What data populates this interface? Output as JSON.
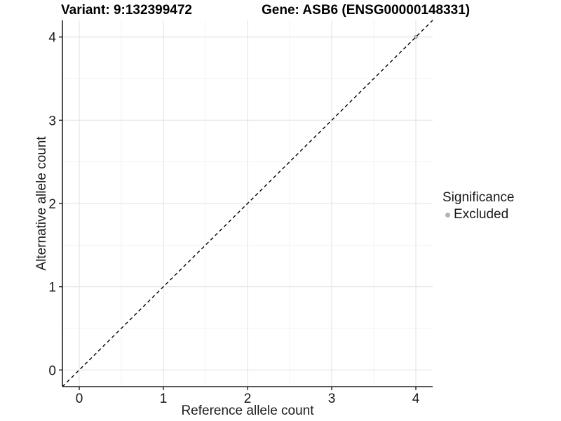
{
  "titles": {
    "variant": "Variant: 9:132399472",
    "gene": "Gene: ASB6 (ENSG00000148331)"
  },
  "chart_data": {
    "type": "scatter",
    "xlabel": "Reference allele count",
    "ylabel": "Alternative allele count",
    "xlim": [
      -0.2,
      4.2
    ],
    "ylim": [
      -0.2,
      4.2
    ],
    "x_ticks": [
      0,
      1,
      2,
      3,
      4
    ],
    "y_ticks": [
      0,
      1,
      2,
      3,
      4
    ],
    "x_minor_ticks": [
      0.5,
      1.5,
      2.5,
      3.5
    ],
    "y_minor_ticks": [
      0.5,
      1.5,
      2.5,
      3.5
    ],
    "grid": "major+minor",
    "series": [
      {
        "name": "Excluded",
        "color": "#b3b3b3",
        "points": [
          {
            "x": 4,
            "y": 4
          }
        ]
      }
    ],
    "reference_line": {
      "type": "identity",
      "slope": 1,
      "intercept": 0,
      "style": "dashed",
      "color": "#000000"
    },
    "legend": {
      "title": "Significance",
      "position": "right",
      "items": [
        {
          "label": "Excluded",
          "color": "#b3b3b3",
          "marker": "circle"
        }
      ]
    },
    "colors": {
      "grid_major": "#e6e6e6",
      "grid_minor": "#f3f3f3",
      "axis": "#222222",
      "text": "#1a1a1a",
      "background": "#ffffff"
    }
  }
}
